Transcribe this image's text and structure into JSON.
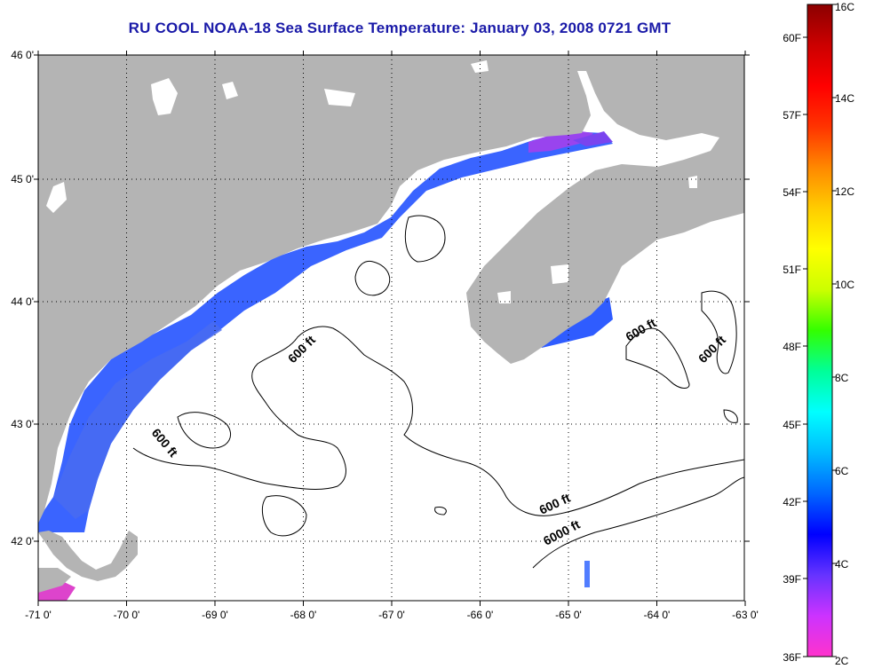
{
  "title": "RU COOL  NOAA-18  Sea Surface Temperature:  January 03, 2008 0721 GMT",
  "map": {
    "lon_ticks": [
      "-71 0'",
      "-70 0'",
      "-69 0'",
      "-68 0'",
      "-67 0'",
      "-66 0'",
      "-65 0'",
      "-64 0'",
      "-63 0'"
    ],
    "lat_ticks": [
      "46 0'",
      "45 0'",
      "44 0'",
      "43 0'",
      "42 0'"
    ],
    "land_color": "#b4b4b4",
    "ocean_color": "#ffffff",
    "contour_labels": [
      "600 ft",
      "600 ft",
      "600 ft",
      "600 ft",
      "600 ft",
      "6000 ft"
    ]
  },
  "colorbar": {
    "fahrenheit_labels": [
      "60F",
      "57F",
      "54F",
      "51F",
      "48F",
      "45F",
      "42F",
      "39F",
      "36F"
    ],
    "celsius_labels": [
      "16C",
      "14C",
      "12C",
      "10C",
      "8C",
      "6C",
      "4C",
      "2C"
    ],
    "colors": [
      "#ff33cc",
      "#cc33ff",
      "#6633ff",
      "#0000ff",
      "#0066ff",
      "#00bbff",
      "#00ffff",
      "#00ff99",
      "#33ff00",
      "#ccff00",
      "#ffff00",
      "#ffcc00",
      "#ff8800",
      "#ff3300",
      "#ff0000",
      "#cc0000",
      "#8b0000"
    ]
  }
}
